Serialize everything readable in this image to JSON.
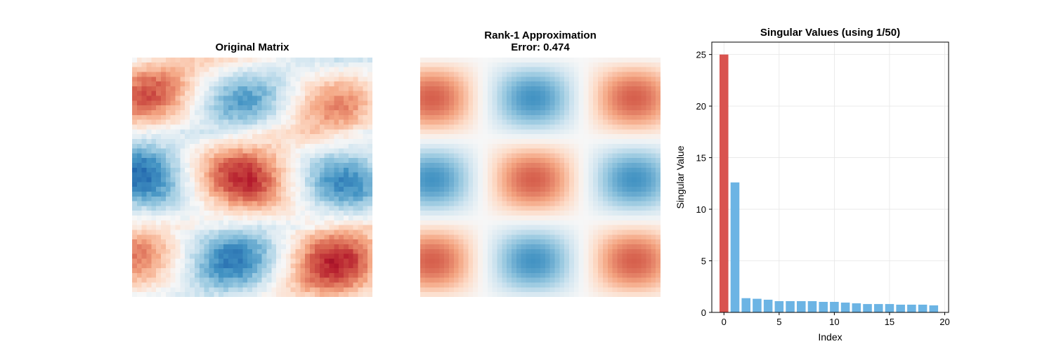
{
  "chart_data": [
    {
      "type": "heatmap",
      "title": "Original Matrix",
      "rows": 50,
      "cols": 50,
      "colormap": "RdBu_r",
      "axes": "off"
    },
    {
      "type": "heatmap",
      "title_lines": [
        "Rank-1 Approximation",
        "Error: 0.474"
      ],
      "rows": 50,
      "cols": 50,
      "colormap": "RdBu_r",
      "axes": "off"
    },
    {
      "type": "bar",
      "title": "Singular Values (using 1/50)",
      "xlabel": "Index",
      "ylabel": "Singular Value",
      "x": [
        0,
        1,
        2,
        3,
        4,
        5,
        6,
        7,
        8,
        9,
        10,
        11,
        12,
        13,
        14,
        15,
        16,
        17,
        18,
        19
      ],
      "values": [
        25.0,
        12.6,
        1.38,
        1.32,
        1.23,
        1.09,
        1.09,
        1.09,
        1.09,
        1.02,
        1.02,
        0.95,
        0.88,
        0.81,
        0.81,
        0.81,
        0.75,
        0.75,
        0.75,
        0.68
      ],
      "highlight_color": "#d9534f",
      "bar_color": "#6cb4e4",
      "xlim": [
        -1.1,
        20.35
      ],
      "ylim": [
        0,
        26.2
      ],
      "xticks": [
        "0",
        "5",
        "10",
        "15",
        "20"
      ],
      "yticks": [
        "0",
        "5",
        "10",
        "15",
        "20",
        "25"
      ],
      "grid": true
    }
  ]
}
